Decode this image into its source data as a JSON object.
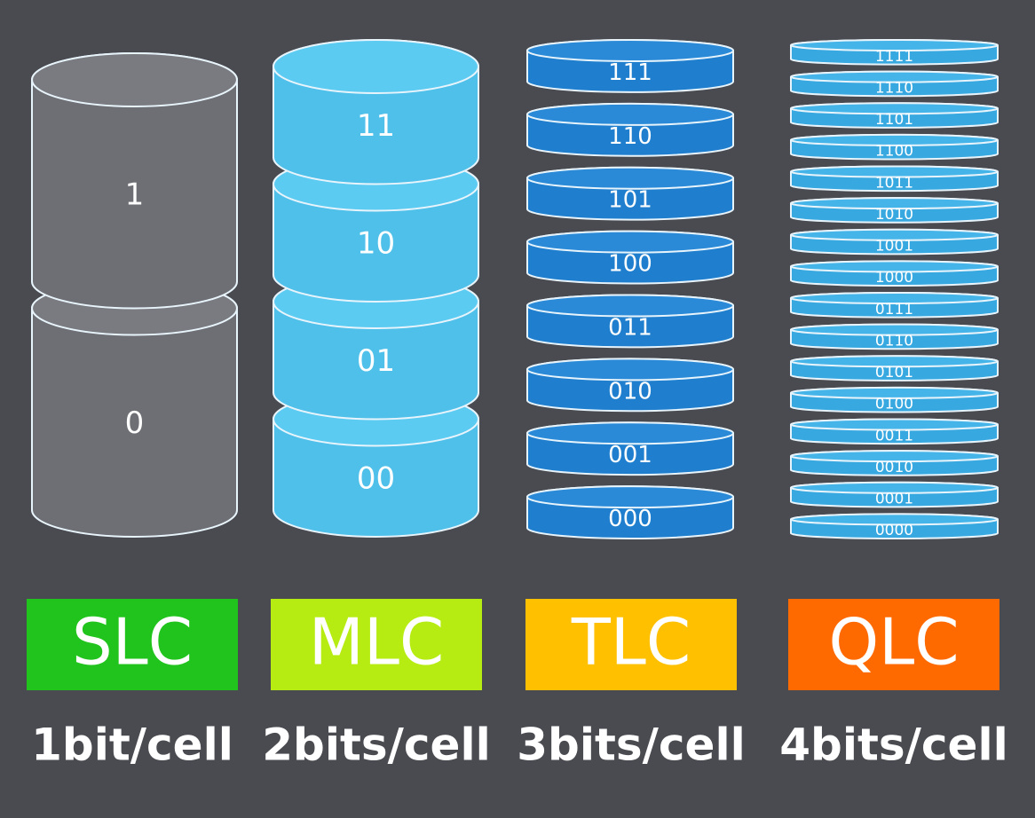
{
  "columns": [
    {
      "label": "SLC",
      "bits": "1bit/cell",
      "cells": [
        "1",
        "0"
      ]
    },
    {
      "label": "MLC",
      "bits": "2bits/cell",
      "cells": [
        "11",
        "10",
        "01",
        "00"
      ]
    },
    {
      "label": "TLC",
      "bits": "3bits/cell",
      "cells": [
        "111",
        "110",
        "101",
        "100",
        "011",
        "010",
        "001",
        "000"
      ]
    },
    {
      "label": "QLC",
      "bits": "4bits/cell",
      "cells": [
        "1111",
        "1110",
        "1101",
        "1100",
        "1011",
        "1010",
        "1001",
        "1000",
        "0111",
        "0110",
        "0101",
        "0100",
        "0011",
        "0010",
        "0001",
        "0000"
      ]
    }
  ]
}
